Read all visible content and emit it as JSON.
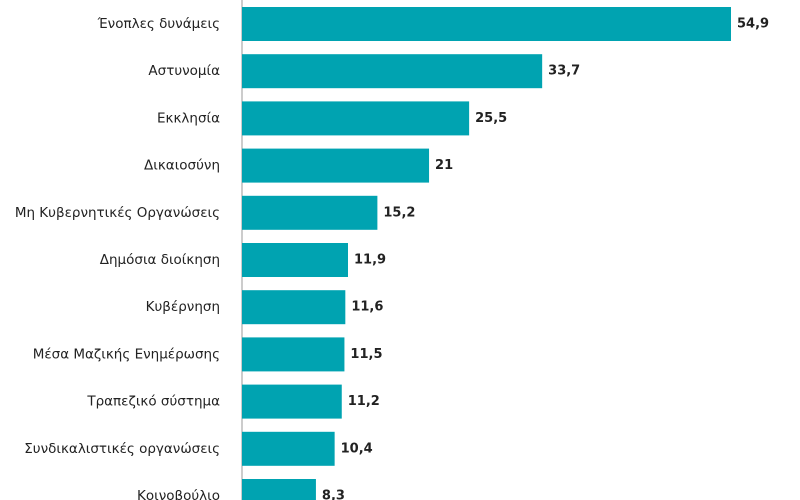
{
  "chart_data": {
    "type": "barh",
    "categories": [
      "Ένοπλες δυνάμεις",
      "Αστυνομία",
      "Εκκλησία",
      "Δικαιοσύνη",
      "Μη Κυβερνητικές Οργανώσεις",
      "Δημόσια διοίκηση",
      "Κυβέρνηση",
      "Μέσα Μαζικής Ενημέρωσης",
      "Τραπεζικό σύστημα",
      "Συνδικαλιστικές οργανώσεις",
      "Κοινοβούλιο"
    ],
    "values": [
      54.9,
      33.7,
      25.5,
      21,
      15.2,
      11.9,
      11.6,
      11.5,
      11.2,
      10.4,
      8.3
    ],
    "value_labels": [
      "54,9",
      "33,7",
      "25,5",
      "21",
      "15,2",
      "11,9",
      "11,6",
      "11,5",
      "11,2",
      "10,4",
      "8,3"
    ],
    "color": "#00a3b1"
  }
}
